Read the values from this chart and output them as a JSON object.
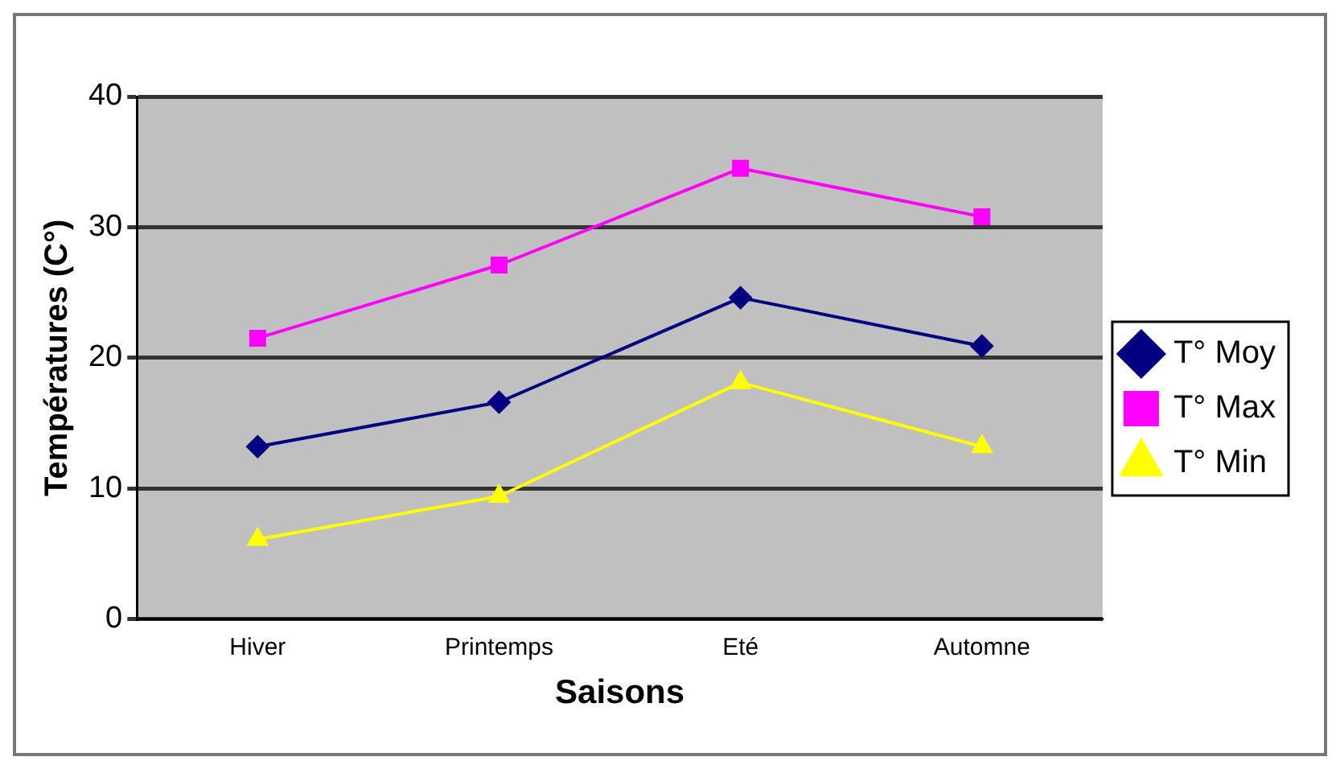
{
  "chart_data": {
    "type": "line",
    "xlabel": "Saisons",
    "ylabel": "Températures (C°)",
    "categories": [
      "Hiver",
      "Printemps",
      "Eté",
      "Automne"
    ],
    "series": [
      {
        "name": "T° Moy",
        "color": "#000080",
        "marker": "diamond",
        "values": [
          13.2,
          16.6,
          24.6,
          20.9
        ]
      },
      {
        "name": "T° Max",
        "color": "#ff00ff",
        "marker": "square",
        "values": [
          21.5,
          27.1,
          34.5,
          30.8
        ]
      },
      {
        "name": "T° Min",
        "color": "#ffff00",
        "marker": "triangle",
        "values": [
          6.1,
          9.4,
          18.1,
          13.2
        ]
      }
    ],
    "ylim": [
      0,
      40
    ],
    "yticks": [
      0,
      10,
      20,
      30,
      40
    ],
    "grid": "y",
    "legend": "right"
  }
}
